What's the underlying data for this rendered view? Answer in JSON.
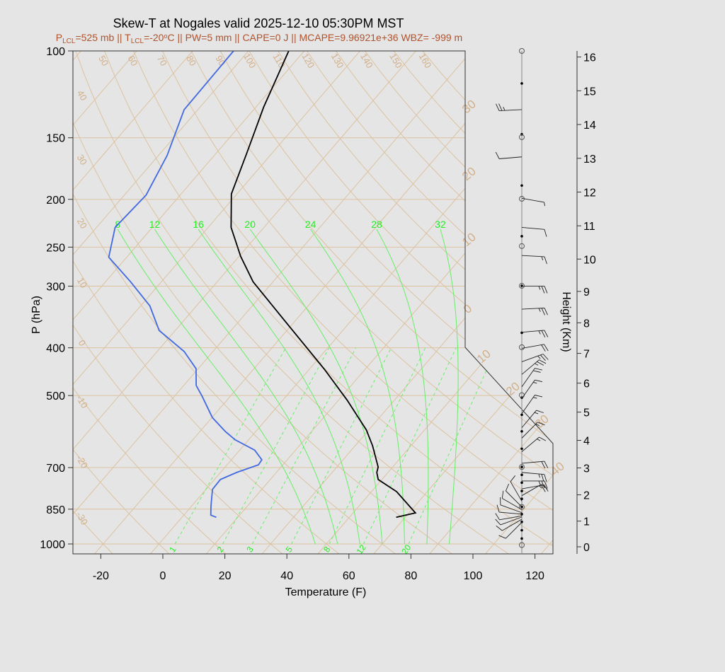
{
  "colors": {
    "background": "#e5e5e5",
    "temperature": "#000000",
    "dewpoint": "#4169e1",
    "isotherm": "#dcc2a0",
    "adiabat": "#dcc2a0",
    "moist": "#66ee66",
    "label_tan": "#d2b08a",
    "label_green": "#22ee22",
    "subtitle": "#b0522c"
  },
  "chart_data": {
    "type": "skew-t",
    "title": "Skew-T at Nogales valid 2025-12-10 05:30PM MST",
    "subtitle": [
      {
        "t": "P"
      },
      {
        "t": "LCL",
        "sub": true
      },
      {
        "t": "=525 mb || T"
      },
      {
        "t": "LCL",
        "sub": true
      },
      {
        "t": "=-20"
      },
      {
        "t": "o",
        "sup": true
      },
      {
        "t": "C || PW=5 mm || CAPE=0 J || MCAPE=9.96921e+36 WBZ= -999 m"
      }
    ],
    "xlabel": "Temperature (F)",
    "ylabel": "P (hPa)",
    "y2label": "Height (Km)",
    "xticks": [
      -20,
      0,
      20,
      40,
      60,
      80,
      100,
      120
    ],
    "pressure_ticks": [
      100,
      150,
      200,
      250,
      300,
      400,
      500,
      700,
      850,
      1000
    ],
    "height_ticks_km": [
      0,
      1,
      2,
      3,
      4,
      5,
      6,
      7,
      8,
      9,
      10,
      11,
      12,
      13,
      14,
      15,
      16
    ],
    "isotherm_labels_c": [
      "30",
      "20",
      "10",
      "0",
      "10",
      "20",
      "30",
      "40"
    ],
    "isotherm_label_values_c": [
      -30,
      -20,
      -10,
      0,
      10,
      20,
      30,
      40
    ],
    "dry_adiabat_top_labels": [
      "50",
      "60",
      "70",
      "80",
      "90",
      "100",
      "110",
      "120",
      "130",
      "140",
      "150",
      "160"
    ],
    "dry_adiabat_left_labels": [
      "40",
      "30",
      "20",
      "10",
      "0",
      "-10",
      "-20",
      "-30"
    ],
    "moist_adiabat_labels": [
      "8",
      "12",
      "16",
      "20",
      "24",
      "28",
      "32"
    ],
    "mixing_ratio_labels": [
      "1",
      "2",
      "3",
      "5",
      "8",
      "12",
      "20"
    ],
    "temperature_f": [
      {
        "p": 100,
        "t": -99
      },
      {
        "p": 130,
        "t": -91.5
      },
      {
        "p": 162,
        "t": -84
      },
      {
        "p": 195,
        "t": -77.8
      },
      {
        "p": 228,
        "t": -68.6
      },
      {
        "p": 261,
        "t": -57.5
      },
      {
        "p": 294,
        "t": -46.4
      },
      {
        "p": 349,
        "t": -26.6
      },
      {
        "p": 442,
        "t": 0.8
      },
      {
        "p": 511,
        "t": 16.8
      },
      {
        "p": 587,
        "t": 31.2
      },
      {
        "p": 632,
        "t": 37.6
      },
      {
        "p": 698,
        "t": 45.3
      },
      {
        "p": 716,
        "t": 46.4
      },
      {
        "p": 740,
        "t": 48.8
      },
      {
        "p": 783,
        "t": 58.1
      },
      {
        "p": 865,
        "t": 70.1
      },
      {
        "p": 883,
        "t": 65.1
      }
    ],
    "dewpoint_f": [
      {
        "p": 100,
        "t": -116.8
      },
      {
        "p": 131.6,
        "t": -116.4
      },
      {
        "p": 163,
        "t": -109.2
      },
      {
        "p": 196,
        "t": -105
      },
      {
        "p": 228,
        "t": -106
      },
      {
        "p": 262,
        "t": -99.8
      },
      {
        "p": 294,
        "t": -85.9
      },
      {
        "p": 329,
        "t": -73
      },
      {
        "p": 369,
        "t": -63.2
      },
      {
        "p": 407,
        "t": -49.3
      },
      {
        "p": 441,
        "t": -40.7
      },
      {
        "p": 477,
        "t": -36
      },
      {
        "p": 501,
        "t": -31.2
      },
      {
        "p": 554,
        "t": -21.9
      },
      {
        "p": 591,
        "t": -13.9
      },
      {
        "p": 615,
        "t": -8.3
      },
      {
        "p": 645,
        "t": 0.8
      },
      {
        "p": 675,
        "t": 5.8
      },
      {
        "p": 691,
        "t": 6.1
      },
      {
        "p": 716,
        "t": 1.2
      },
      {
        "p": 740,
        "t": -2.1
      },
      {
        "p": 775,
        "t": -1.9
      },
      {
        "p": 837,
        "t": 2.2
      },
      {
        "p": 874,
        "t": 4.7
      },
      {
        "p": 883,
        "t": 7.1
      }
    ],
    "winds": [
      {
        "p": 131.5,
        "dir": 267,
        "spd": 25
      },
      {
        "p": 164,
        "dir": 265,
        "spd": 10
      },
      {
        "p": 199,
        "dir": 100,
        "spd": 5
      },
      {
        "p": 228,
        "dir": 95,
        "spd": 10
      },
      {
        "p": 260,
        "dir": 93,
        "spd": 15
      },
      {
        "p": 300,
        "dir": 90,
        "spd": 25
      },
      {
        "p": 334,
        "dir": 87,
        "spd": 25
      },
      {
        "p": 372,
        "dir": 85,
        "spd": 25
      },
      {
        "p": 401,
        "dir": 80,
        "spd": 20
      },
      {
        "p": 427,
        "dir": 70,
        "spd": 25
      },
      {
        "p": 453,
        "dir": 50,
        "spd": 25
      },
      {
        "p": 480,
        "dir": 35,
        "spd": 20
      },
      {
        "p": 507,
        "dir": 35,
        "spd": 15
      },
      {
        "p": 544,
        "dir": 35,
        "spd": 15
      },
      {
        "p": 581,
        "dir": 40,
        "spd": 15
      },
      {
        "p": 610,
        "dir": 45,
        "spd": 15
      },
      {
        "p": 650,
        "dir": 50,
        "spd": 15
      },
      {
        "p": 686,
        "dir": 85,
        "spd": 20
      },
      {
        "p": 716,
        "dir": 95,
        "spd": 25
      },
      {
        "p": 745,
        "dir": 90,
        "spd": 25
      },
      {
        "p": 773,
        "dir": 80,
        "spd": 20
      },
      {
        "p": 798,
        "dir": 60,
        "spd": 15
      },
      {
        "p": 819,
        "dir": 330,
        "spd": 10
      },
      {
        "p": 841,
        "dir": 315,
        "spd": 10
      },
      {
        "p": 852,
        "dir": 300,
        "spd": 10
      },
      {
        "p": 864,
        "dir": 290,
        "spd": 10
      },
      {
        "p": 870,
        "dir": 275,
        "spd": 10
      },
      {
        "p": 877,
        "dir": 260,
        "spd": 10
      },
      {
        "p": 882,
        "dir": 250,
        "spd": 10
      },
      {
        "p": 891,
        "dir": 240,
        "spd": 10
      },
      {
        "p": 904,
        "dir": 225,
        "spd": 10
      }
    ],
    "level_dots_p": [
      116.4,
      147.6,
      187.5,
      237.6,
      299.5,
      373,
      505,
      547,
      591,
      641,
      698,
      724,
      751,
      781,
      810,
      841,
      870,
      902,
      938,
      975
    ],
    "level_circles_p": [
      100,
      149.6,
      199.5,
      248.8,
      299.5,
      399,
      499,
      698,
      841,
      1005
    ],
    "pressure_range_hpa": [
      1048,
      100
    ],
    "x_range_f": [
      -29,
      125
    ],
    "y_scale": "log"
  }
}
